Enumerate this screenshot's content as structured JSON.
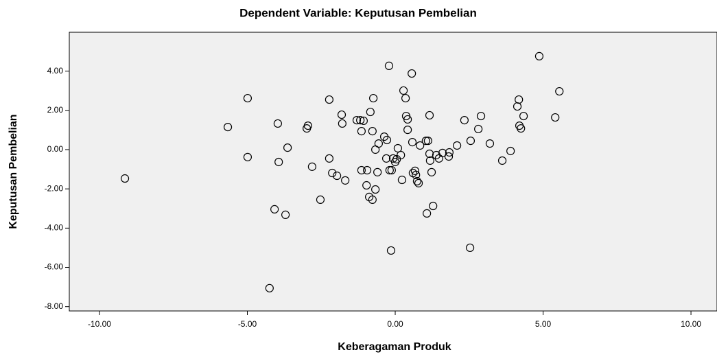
{
  "chart_data": {
    "type": "scatter",
    "title": "Dependent Variable: Keputusan Pembelian",
    "x_label": "Keberagaman Produk",
    "y_label": "Keputusan Pembelian",
    "x": [
      -9.14,
      -5.66,
      -4.99,
      -4.99,
      -3.97,
      -3.94,
      -4.08,
      -3.71,
      -3.64,
      -4.25,
      -2.99,
      -2.95,
      -2.81,
      -2.53,
      -2.23,
      -2.23,
      -2.13,
      -1.97,
      -1.81,
      -1.79,
      -1.69,
      -1.3,
      -1.18,
      -1.07,
      -1.14,
      -1.14,
      -0.95,
      -0.97,
      -0.88,
      -0.84,
      -0.77,
      -0.74,
      -0.77,
      -0.67,
      -0.67,
      -0.6,
      -0.56,
      -0.37,
      -0.28,
      -0.3,
      -0.21,
      -0.19,
      -0.12,
      -0.14,
      -0.07,
      0.0,
      0.05,
      0.09,
      0.19,
      0.23,
      0.28,
      0.35,
      0.37,
      0.42,
      0.42,
      0.56,
      0.58,
      0.6,
      0.67,
      0.7,
      0.74,
      0.79,
      0.84,
      1.04,
      1.11,
      1.07,
      1.16,
      1.18,
      1.16,
      1.23,
      1.28,
      1.39,
      1.48,
      1.6,
      1.83,
      1.81,
      2.09,
      2.34,
      2.55,
      2.53,
      2.81,
      2.9,
      3.2,
      3.62,
      3.9,
      4.13,
      4.18,
      4.2,
      4.25,
      4.34,
      4.87,
      5.41,
      5.55
    ],
    "values": [
      -1.47,
      1.15,
      2.62,
      -0.38,
      1.33,
      -0.63,
      -3.04,
      -3.32,
      0.1,
      -7.06,
      1.08,
      1.22,
      -0.87,
      -2.55,
      2.55,
      -0.45,
      -1.19,
      -1.33,
      1.78,
      1.33,
      -1.57,
      1.5,
      1.5,
      1.47,
      0.94,
      -1.05,
      -1.05,
      -1.82,
      -2.41,
      1.92,
      -2.55,
      2.62,
      0.94,
      -2.03,
      0.0,
      -1.15,
      0.31,
      0.66,
      0.49,
      -0.45,
      4.27,
      -1.05,
      -1.05,
      -5.14,
      -0.45,
      -0.63,
      -0.49,
      0.07,
      -0.28,
      -1.54,
      3.01,
      2.62,
      1.71,
      1.54,
      1.01,
      3.88,
      0.38,
      -1.19,
      -1.08,
      -1.29,
      -1.61,
      -1.71,
      0.21,
      0.45,
      0.45,
      -3.25,
      1.75,
      -0.56,
      -0.21,
      -1.15,
      -2.87,
      -0.28,
      -0.45,
      -0.17,
      -0.14,
      -0.35,
      0.21,
      1.5,
      0.45,
      -5.0,
      1.05,
      1.71,
      0.31,
      -0.56,
      -0.07,
      2.2,
      2.55,
      1.22,
      1.08,
      1.71,
      4.76,
      1.64,
      2.97
    ],
    "xlim": [
      -11.02,
      10.88
    ],
    "ylim": [
      -8.22,
      5.98
    ],
    "xticks": [
      {
        "value": -10,
        "label": "-10.00"
      },
      {
        "value": -5,
        "label": "-5.00"
      },
      {
        "value": 0,
        "label": "0.00"
      },
      {
        "value": 5,
        "label": "5.00"
      },
      {
        "value": 10,
        "label": "10.00"
      }
    ],
    "yticks": [
      {
        "value": -8,
        "label": "-8.00"
      },
      {
        "value": -6,
        "label": "-6.00"
      },
      {
        "value": -4,
        "label": "-4.00"
      },
      {
        "value": -2,
        "label": "-2.00"
      },
      {
        "value": 0,
        "label": "0.00"
      },
      {
        "value": 2,
        "label": "2.00"
      },
      {
        "value": 4,
        "label": "4.00"
      }
    ],
    "color": "#000000",
    "background": "#f0f0f0"
  }
}
